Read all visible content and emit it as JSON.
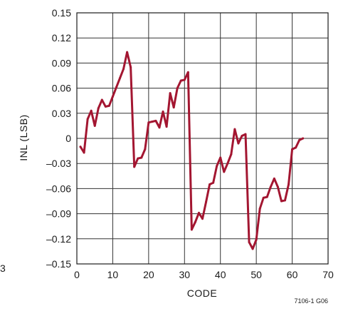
{
  "chart_data": {
    "type": "line",
    "xlabel": "CODE",
    "ylabel": "INL (LSB)",
    "xlim": [
      0,
      70
    ],
    "ylim": [
      -0.15,
      0.15
    ],
    "xticks": [
      0,
      10,
      20,
      30,
      40,
      50,
      60,
      70
    ],
    "yticks": [
      0.15,
      0.12,
      0.09,
      0.06,
      0.03,
      0,
      -0.03,
      -0.06,
      -0.09,
      -0.12,
      -0.15
    ],
    "ytick_labels": [
      "0.15",
      "0.12",
      "0.09",
      "0.06",
      "0.03",
      "0",
      "–0.03",
      "–0.06",
      "–0.09",
      "–0.12",
      "–0.15"
    ],
    "grid": true,
    "legend": "none",
    "note": "7106-1 G06",
    "stray_label": "3",
    "series": [
      {
        "color": "#a31631",
        "x": [
          1,
          2,
          3,
          4,
          5,
          6,
          7,
          8,
          9,
          10,
          11,
          12,
          13,
          14,
          15,
          16,
          17,
          18,
          19,
          20,
          21,
          22,
          23,
          24,
          25,
          26,
          27,
          28,
          29,
          30,
          31,
          32,
          33,
          34,
          35,
          36,
          37,
          38,
          39,
          40,
          41,
          42,
          43,
          44,
          45,
          46,
          47,
          48,
          49,
          50,
          51,
          52,
          53,
          54,
          55,
          56,
          57,
          58,
          59,
          60,
          61,
          62,
          63
        ],
        "y": [
          -0.01,
          -0.017,
          0.023,
          0.033,
          0.015,
          0.036,
          0.046,
          0.038,
          0.039,
          0.05,
          0.061,
          0.072,
          0.083,
          0.103,
          0.085,
          -0.034,
          -0.024,
          -0.023,
          -0.013,
          0.019,
          0.02,
          0.021,
          0.013,
          0.032,
          0.014,
          0.054,
          0.037,
          0.06,
          0.069,
          0.07,
          0.079,
          -0.109,
          -0.1,
          -0.089,
          -0.096,
          -0.076,
          -0.055,
          -0.053,
          -0.033,
          -0.023,
          -0.04,
          -0.03,
          -0.019,
          0.011,
          -0.006,
          0.003,
          0.005,
          -0.124,
          -0.132,
          -0.121,
          -0.084,
          -0.071,
          -0.07,
          -0.058,
          -0.048,
          -0.058,
          -0.075,
          -0.074,
          -0.055,
          -0.013,
          -0.011,
          -0.002,
          0.0
        ]
      }
    ]
  }
}
